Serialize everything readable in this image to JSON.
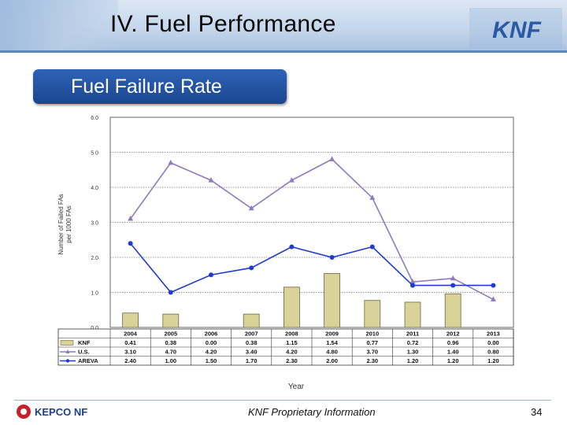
{
  "header": {
    "title": "IV. Fuel Performance",
    "logo_text": "KNF"
  },
  "subtitle": "Fuel Failure Rate",
  "footer": {
    "text": "KNF Proprietary Information",
    "page_number": "34",
    "logo_text": "KEPCO NF"
  },
  "colors": {
    "bar": "#d9d39a",
    "us_line": "#8c7bbf",
    "areva_line": "#1f3ccf",
    "header_bar": "#5d86bd",
    "subtitle_bg": "#1f4d9c"
  },
  "chart_data": {
    "type": "bar-line",
    "categories": [
      "2004",
      "2005",
      "2006",
      "2007",
      "2008",
      "2009",
      "2010",
      "2011",
      "2012",
      "2013"
    ],
    "series": [
      {
        "name": "KNF",
        "kind": "bar",
        "values": [
          0.41,
          0.38,
          0.0,
          0.38,
          1.15,
          1.54,
          0.77,
          0.72,
          0.96,
          0.0
        ],
        "labels": [
          "0.41",
          "0.38",
          "0.00",
          "0.38",
          "1.15",
          "1.54",
          "0.77",
          "0.72",
          "0.96",
          "0.00"
        ]
      },
      {
        "name": "U.S.",
        "kind": "line",
        "marker": "triangle",
        "values": [
          3.1,
          4.7,
          4.2,
          3.4,
          4.2,
          4.8,
          3.7,
          1.3,
          1.4,
          0.8
        ],
        "labels": [
          "3.10",
          "4.70",
          "4.20",
          "3.40",
          "4.20",
          "4.80",
          "3.70",
          "1.30",
          "1.40",
          "0.80"
        ]
      },
      {
        "name": "AREVA",
        "kind": "line",
        "marker": "circle",
        "values": [
          2.4,
          1.0,
          1.5,
          1.7,
          2.3,
          2.0,
          2.3,
          1.2,
          1.2,
          1.2
        ],
        "labels": [
          "2.40",
          "1.00",
          "1.50",
          "1.70",
          "2.30",
          "2.00",
          "2.30",
          "1.20",
          "1.20",
          "1.20"
        ]
      }
    ],
    "ylabel": "Number of Failed FAs per 1000 FAs",
    "ylabel_lines": [
      "Number of Failed FAs",
      "per 1000 FAs"
    ],
    "xlabel": "Year",
    "ylim": [
      0,
      6
    ],
    "yticks": [
      "0.0",
      "1.0",
      "2.0",
      "3.0",
      "4.0",
      "5.0",
      "6.0"
    ],
    "grid": true,
    "legend": "table-below"
  }
}
